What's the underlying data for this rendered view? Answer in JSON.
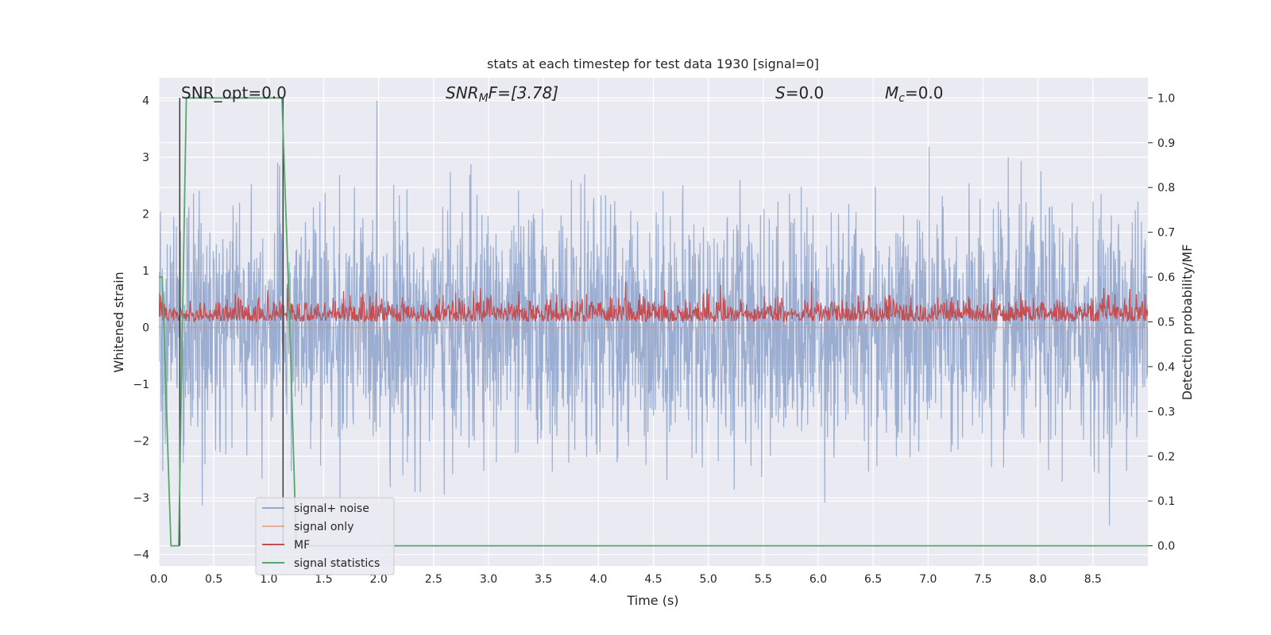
{
  "chart_data": {
    "type": "line",
    "title": "stats at each timestep for test data 1930 [signal=0]",
    "xlabel": "Time (s)",
    "ylabel": "Whitened strain",
    "y2label": "Detection probability/MF",
    "xlim": [
      0.0,
      9.0
    ],
    "ylim": [
      -4.2,
      4.4
    ],
    "y2lim": [
      -0.045,
      1.045
    ],
    "x_ticks": [
      0.0,
      0.5,
      1.0,
      1.5,
      2.0,
      2.5,
      3.0,
      3.5,
      4.0,
      4.5,
      5.0,
      5.5,
      6.0,
      6.5,
      7.0,
      7.5,
      8.0,
      8.5
    ],
    "x_tick_labels": [
      "0.0",
      "0.5",
      "1.0",
      "1.5",
      "2.0",
      "2.5",
      "3.0",
      "3.5",
      "4.0",
      "4.5",
      "5.0",
      "5.5",
      "6.0",
      "6.5",
      "7.0",
      "7.5",
      "8.0",
      "8.5"
    ],
    "y_ticks": [
      4,
      3,
      2,
      1,
      0,
      -1,
      -2,
      -3,
      -4
    ],
    "y_tick_labels": [
      "4",
      "3",
      "2",
      "1",
      "0",
      "−1",
      "−2",
      "−3",
      "−4"
    ],
    "y2_ticks": [
      1.0,
      0.9,
      0.8,
      0.7,
      0.6,
      0.5,
      0.4,
      0.3,
      0.2,
      0.1,
      0.0
    ],
    "y2_tick_labels": [
      "1.0",
      "0.9",
      "0.8",
      "0.7",
      "0.6",
      "0.5",
      "0.4",
      "0.3",
      "0.2",
      "0.1",
      "0.0"
    ],
    "grid": true,
    "legend_position": "lower-left",
    "annotations": {
      "snr_opt": "SNR_opt=0.0",
      "snr_mf_prefix": "SNR",
      "snr_mf_sub": "M",
      "snr_mf_suffix": "F=[3.78]",
      "s_label": "S",
      "s_value": "=0.0",
      "mc_label": "M",
      "mc_sub": "c",
      "mc_value": "=0.0"
    },
    "series": [
      {
        "name": "signal+ noise",
        "color": "#4c72b0",
        "axis": "left",
        "style": "dense noise, approx. range -3.7 to 4.0"
      },
      {
        "name": "signal only",
        "color": "#dd8452",
        "axis": "left",
        "x": [
          0.0,
          9.0
        ],
        "y": [
          0.0,
          0.0
        ]
      },
      {
        "name": "MF",
        "color": "#c44e52",
        "axis": "right",
        "style": "dense noise, approx. range 0.5 to 0.6"
      },
      {
        "name": "signal statistics",
        "color": "#55a868",
        "axis": "right",
        "x": [
          0.0,
          0.03,
          0.11,
          0.18,
          0.25,
          0.31,
          1.12,
          1.19,
          1.25,
          9.0
        ],
        "y": [
          0.6,
          0.6,
          0.0,
          0.0,
          1.0,
          1.0,
          1.0,
          0.5,
          0.0,
          0.0
        ]
      }
    ],
    "vertical_lines": [
      {
        "x": 0.19,
        "color": "#3a3a3a"
      },
      {
        "x": 1.13,
        "color": "#3a3a3a"
      }
    ]
  }
}
